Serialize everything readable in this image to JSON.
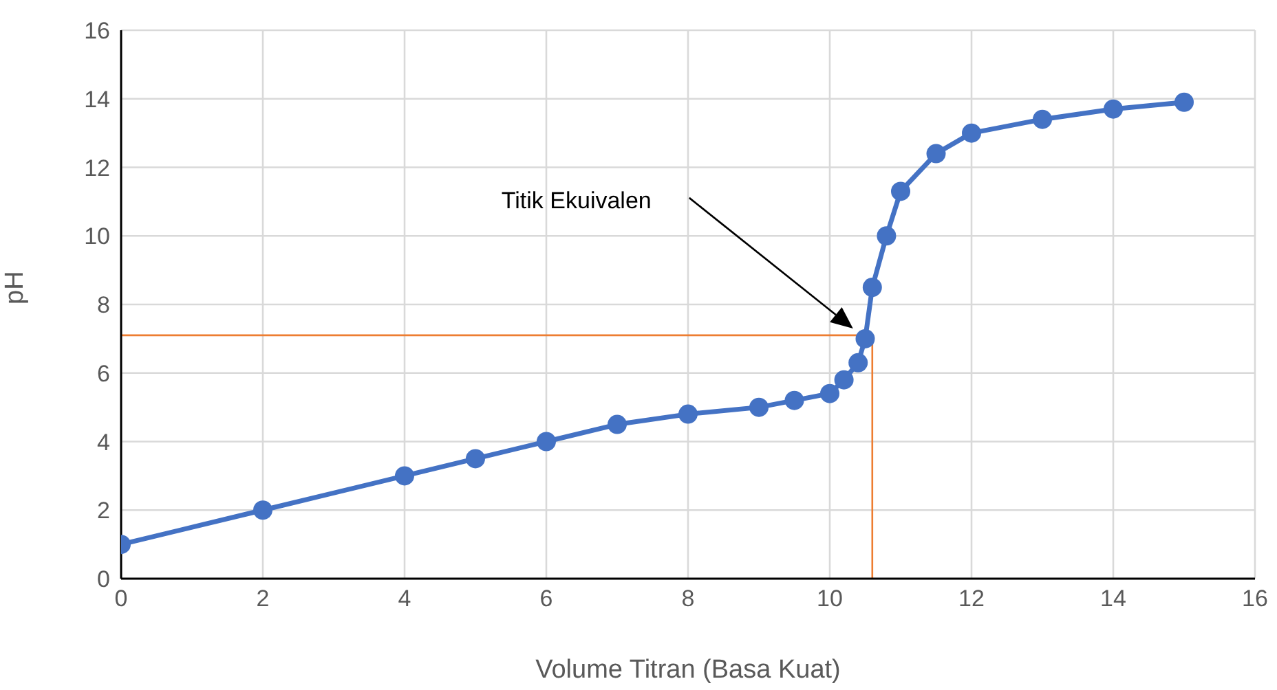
{
  "chart_data": {
    "type": "line",
    "xlabel": "Volume Titran (Basa Kuat)",
    "ylabel": "pH",
    "x": [
      0,
      2,
      4,
      5,
      6,
      7,
      8,
      9,
      9.5,
      10,
      10.2,
      10.4,
      10.5,
      10.6,
      10.8,
      11,
      11.5,
      12,
      13,
      14,
      15
    ],
    "series": [
      {
        "color": "#4472c4",
        "values": [
          1,
          2,
          3,
          3.5,
          4,
          4.5,
          4.8,
          5,
          5.2,
          5.4,
          5.8,
          6.3,
          7,
          8.5,
          10,
          11.3,
          12.4,
          13,
          13.4,
          13.7,
          13.9
        ]
      }
    ],
    "xlim": [
      0,
      16
    ],
    "xticks": [
      0,
      2,
      4,
      6,
      8,
      10,
      12,
      14,
      16
    ],
    "ylim": [
      0,
      16
    ],
    "yticks": [
      0,
      2,
      4,
      6,
      8,
      10,
      12,
      14,
      16
    ],
    "grid": true,
    "marker": "circle",
    "line_style": "solid",
    "legend": false,
    "ref_lines": [
      {
        "axis": "y",
        "value": 7.1,
        "color": "#ed7d31"
      },
      {
        "axis": "x",
        "value": 10.6,
        "color": "#ed7d31"
      }
    ],
    "annotations": [
      "Titik Ekuivalen"
    ]
  }
}
